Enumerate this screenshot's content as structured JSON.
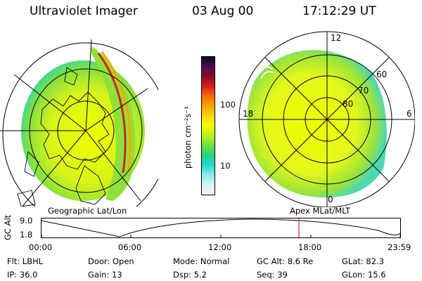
{
  "header": {
    "instrument": "Ultraviolet Imager",
    "date": "03 Aug 00",
    "time": "17:12:29 UT"
  },
  "left_panel": {
    "caption": "Geographic Lat/Lon"
  },
  "right_panel": {
    "caption": "Apex MLat/MLT",
    "mlt_labels": [
      "12",
      "18",
      "6",
      "0"
    ],
    "lat_labels": [
      "60",
      "70",
      "80"
    ]
  },
  "colorbar": {
    "unit_label": "photon cm⁻²s⁻¹",
    "ticks": [
      "100",
      "10"
    ],
    "colors": [
      "#0a0a28",
      "#4b0e55",
      "#8b0a2a",
      "#d2201e",
      "#ff6a00",
      "#ffa500",
      "#ffd400",
      "#f0ff00",
      "#b9f01c",
      "#6ee13a",
      "#27d47e",
      "#21d6d6",
      "#8fe9ee",
      "#d3f4f6",
      "#f4f4f4"
    ]
  },
  "timeline": {
    "ylabel": "GC Alt",
    "ymax_label": "9.0",
    "ymin_label": "1.8",
    "xticks": [
      "00:00",
      "06:00",
      "12:00",
      "18:00",
      "23:59"
    ],
    "marker_color": "#e02020"
  },
  "info": {
    "row1": [
      {
        "key": "Flt:",
        "val": "LBHL"
      },
      {
        "key": "Door:",
        "val": "Open"
      },
      {
        "key": "Mode:",
        "val": "Normal"
      },
      {
        "key": "GC Alt:",
        "val": "8.6 Re"
      },
      {
        "key": "GLat:",
        "val": "82.3"
      }
    ],
    "row2": [
      {
        "key": "IP:",
        "val": "36.0"
      },
      {
        "key": "Gain:",
        "val": "13"
      },
      {
        "key": "Dsp:",
        "val": "5.2"
      },
      {
        "key": "Seq:",
        "val": "39"
      },
      {
        "key": "GLon:",
        "val": "15.6"
      }
    ]
  }
}
